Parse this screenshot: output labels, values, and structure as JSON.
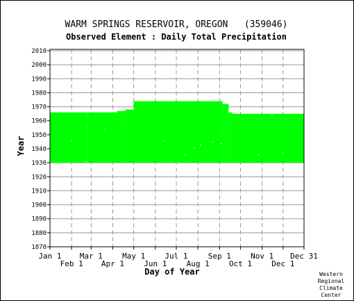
{
  "chart_data": {
    "type": "heatmap",
    "title": "WARM SPRINGS RESERVOIR, OREGON   (359046)",
    "subtitle": "Observed Element : Daily Total Precipitation",
    "xlabel": "Day of Year",
    "ylabel": "Year",
    "ylim": [
      1870,
      2011
    ],
    "xlim": [
      1,
      365
    ],
    "y_ticks": [
      1870,
      1880,
      1890,
      1900,
      1910,
      1920,
      1930,
      1940,
      1950,
      1960,
      1970,
      1980,
      1990,
      2000,
      2010
    ],
    "x_ticks_top_row": [
      {
        "label": "Jan 1",
        "day": 1
      },
      {
        "label": "Mar 1",
        "day": 60
      },
      {
        "label": "May 1",
        "day": 121
      },
      {
        "label": "Jul 1",
        "day": 182
      },
      {
        "label": "Sep 1",
        "day": 244
      },
      {
        "label": "Nov 1",
        "day": 305
      },
      {
        "label": "Dec 31",
        "day": 365
      }
    ],
    "x_ticks_bottom_row": [
      {
        "label": "Feb 1",
        "day": 32
      },
      {
        "label": "Apr 1",
        "day": 91
      },
      {
        "label": "Jun 1",
        "day": 152
      },
      {
        "label": "Aug 1",
        "day": 213
      },
      {
        "label": "Oct 1",
        "day": 274
      },
      {
        "label": "Dec 1",
        "day": 335
      }
    ],
    "grid": true,
    "data_color": "#00ff00",
    "coverage": [
      {
        "day_start": 1,
        "day_end": 55,
        "year_start": 1930,
        "year_end": 1966
      },
      {
        "day_start": 55,
        "day_end": 97,
        "year_start": 1930,
        "year_end": 1966
      },
      {
        "day_start": 97,
        "day_end": 109,
        "year_start": 1930,
        "year_end": 1967
      },
      {
        "day_start": 109,
        "day_end": 121,
        "year_start": 1930,
        "year_end": 1968
      },
      {
        "day_start": 121,
        "day_end": 248,
        "year_start": 1930,
        "year_end": 1974
      },
      {
        "day_start": 248,
        "day_end": 257,
        "year_start": 1930,
        "year_end": 1972
      },
      {
        "day_start": 257,
        "day_end": 262,
        "year_start": 1930,
        "year_end": 1966
      },
      {
        "day_start": 262,
        "day_end": 365,
        "year_start": 1930,
        "year_end": 1965
      }
    ],
    "gaps": [
      {
        "day": 31,
        "year": 1946
      },
      {
        "day": 52,
        "year": 1931
      },
      {
        "day": 78,
        "year": 1954
      },
      {
        "day": 120,
        "year": 1969
      },
      {
        "day": 163,
        "year": 1946
      },
      {
        "day": 194,
        "year": 1936
      },
      {
        "day": 207,
        "year": 1941
      },
      {
        "day": 216,
        "year": 1943
      },
      {
        "day": 233,
        "year": 1945
      },
      {
        "day": 245,
        "year": 1944
      },
      {
        "day": 299,
        "year": 1936
      },
      {
        "day": 318,
        "year": 1964
      },
      {
        "day": 334,
        "year": 1937
      }
    ]
  },
  "footer": {
    "credit_lines": [
      "Western",
      "Regional",
      "Climate",
      "Center"
    ]
  }
}
